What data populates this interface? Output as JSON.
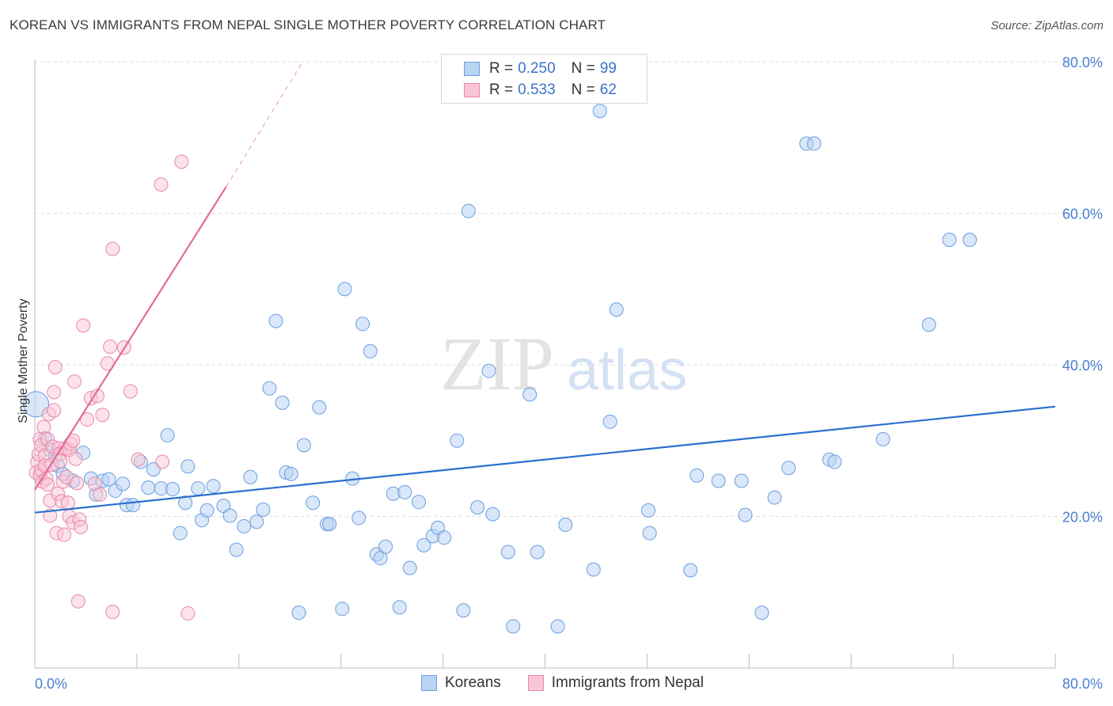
{
  "title": "KOREAN VS IMMIGRANTS FROM NEPAL SINGLE MOTHER POVERTY CORRELATION CHART",
  "source": "Source: ZipAtlas.com",
  "watermark": {
    "zip": "ZIP",
    "atlas": "atlas"
  },
  "legend": {
    "r_label": "R =",
    "n_label": "N =",
    "rows": [
      {
        "r": "0.250",
        "n": "99",
        "swatch_fill": "#b9d3f3",
        "swatch_stroke": "#6a9ee0"
      },
      {
        "r": "0.533",
        "n": "62",
        "swatch_fill": "#f9c6d6",
        "swatch_stroke": "#e888a8"
      }
    ]
  },
  "bottom_legend": [
    {
      "label": "Koreans",
      "fill": "#b9d3f3",
      "stroke": "#6a9ee0"
    },
    {
      "label": "Immigrants from Nepal",
      "fill": "#f9c6d6",
      "stroke": "#e888a8"
    }
  ],
  "chart_data": {
    "type": "scatter",
    "ylabel": "Single Mother Poverty",
    "xlim": [
      0,
      80
    ],
    "ylim": [
      0,
      80
    ],
    "x_tick_labels": {
      "left": "0.0%",
      "right": "80.0%"
    },
    "y_ticks": [
      {
        "value": 20,
        "label": "20.0%"
      },
      {
        "value": 40,
        "label": "40.0%"
      },
      {
        "value": 60,
        "label": "60.0%"
      },
      {
        "value": 80,
        "label": "80.0%"
      }
    ],
    "grid": "horizontal dashed",
    "series": [
      {
        "name": "Koreans",
        "color": "#6a9ee0",
        "fill": "#b9d3f3",
        "trend": {
          "x0": 0,
          "y0": 20.5,
          "x1": 80,
          "y1": 34.5,
          "color": "#2b6fd0"
        },
        "points": [
          [
            0.1,
            34.8
          ],
          [
            0.8,
            30.3
          ],
          [
            1.2,
            28.8
          ],
          [
            1.6,
            28.0
          ],
          [
            1.8,
            26.7
          ],
          [
            2.2,
            25.6
          ],
          [
            3.0,
            24.7
          ],
          [
            3.8,
            28.4
          ],
          [
            4.4,
            25.0
          ],
          [
            4.8,
            22.9
          ],
          [
            5.3,
            24.7
          ],
          [
            5.8,
            24.9
          ],
          [
            6.3,
            23.4
          ],
          [
            6.9,
            24.3
          ],
          [
            7.2,
            21.5
          ],
          [
            7.7,
            21.5
          ],
          [
            8.3,
            27.2
          ],
          [
            8.9,
            23.8
          ],
          [
            9.3,
            26.2
          ],
          [
            9.9,
            23.7
          ],
          [
            10.4,
            30.7
          ],
          [
            10.8,
            23.6
          ],
          [
            11.4,
            17.8
          ],
          [
            11.8,
            21.8
          ],
          [
            12.0,
            26.6
          ],
          [
            12.8,
            23.7
          ],
          [
            13.1,
            19.5
          ],
          [
            13.5,
            20.8
          ],
          [
            14.0,
            24.0
          ],
          [
            14.8,
            21.4
          ],
          [
            15.3,
            20.1
          ],
          [
            15.8,
            15.6
          ],
          [
            16.4,
            18.7
          ],
          [
            16.9,
            25.2
          ],
          [
            17.4,
            19.3
          ],
          [
            17.9,
            20.9
          ],
          [
            18.4,
            36.9
          ],
          [
            18.9,
            45.8
          ],
          [
            19.4,
            35.0
          ],
          [
            19.7,
            25.8
          ],
          [
            20.1,
            25.6
          ],
          [
            20.7,
            7.3
          ],
          [
            21.1,
            29.4
          ],
          [
            21.8,
            21.8
          ],
          [
            22.3,
            34.4
          ],
          [
            22.9,
            19.0
          ],
          [
            23.1,
            19.0
          ],
          [
            24.1,
            7.8
          ],
          [
            24.3,
            50.0
          ],
          [
            24.9,
            25.0
          ],
          [
            25.4,
            19.8
          ],
          [
            25.7,
            45.4
          ],
          [
            26.3,
            41.8
          ],
          [
            26.8,
            15.0
          ],
          [
            27.1,
            14.5
          ],
          [
            27.5,
            16.0
          ],
          [
            28.1,
            23.0
          ],
          [
            28.6,
            8.0
          ],
          [
            29.0,
            23.2
          ],
          [
            29.4,
            13.2
          ],
          [
            30.1,
            21.9
          ],
          [
            30.5,
            16.2
          ],
          [
            31.2,
            17.4
          ],
          [
            31.6,
            18.5
          ],
          [
            32.1,
            17.2
          ],
          [
            33.1,
            30.0
          ],
          [
            33.6,
            7.6
          ],
          [
            34.0,
            60.3
          ],
          [
            34.7,
            21.2
          ],
          [
            35.6,
            39.2
          ],
          [
            35.9,
            20.3
          ],
          [
            37.1,
            15.3
          ],
          [
            37.5,
            5.5
          ],
          [
            38.8,
            36.1
          ],
          [
            39.4,
            15.3
          ],
          [
            41.0,
            5.5
          ],
          [
            41.6,
            18.9
          ],
          [
            43.8,
            13.0
          ],
          [
            44.3,
            73.5
          ],
          [
            45.1,
            32.5
          ],
          [
            45.6,
            47.3
          ],
          [
            48.1,
            20.8
          ],
          [
            48.2,
            17.8
          ],
          [
            51.4,
            12.9
          ],
          [
            51.9,
            25.4
          ],
          [
            53.6,
            24.7
          ],
          [
            55.4,
            24.7
          ],
          [
            55.7,
            20.2
          ],
          [
            57.0,
            7.3
          ],
          [
            58.0,
            22.5
          ],
          [
            59.1,
            26.4
          ],
          [
            60.5,
            69.2
          ],
          [
            61.1,
            69.2
          ],
          [
            62.3,
            27.5
          ],
          [
            62.7,
            27.2
          ],
          [
            66.5,
            30.2
          ],
          [
            70.1,
            45.3
          ],
          [
            71.7,
            56.5
          ],
          [
            73.3,
            56.5
          ]
        ]
      },
      {
        "name": "Immigrants from Nepal",
        "color": "#e888a8",
        "fill": "#f9c6d6",
        "trend": {
          "x0": 0,
          "y0": 23.5,
          "x1": 15,
          "y1": 63.5,
          "dash_x1": 21,
          "dash_y1": 80,
          "color": "#e26c97"
        },
        "points": [
          [
            0.1,
            25.8
          ],
          [
            0.2,
            27.2
          ],
          [
            0.3,
            28.2
          ],
          [
            0.4,
            30.2
          ],
          [
            0.4,
            25.4
          ],
          [
            0.5,
            26.1
          ],
          [
            0.5,
            29.4
          ],
          [
            0.6,
            24.6
          ],
          [
            0.7,
            31.8
          ],
          [
            0.8,
            28.0
          ],
          [
            0.8,
            26.7
          ],
          [
            0.9,
            25.0
          ],
          [
            1.0,
            30.2
          ],
          [
            1.0,
            24.2
          ],
          [
            1.1,
            33.5
          ],
          [
            1.2,
            20.1
          ],
          [
            1.2,
            22.1
          ],
          [
            1.3,
            26.8
          ],
          [
            1.4,
            29.2
          ],
          [
            1.5,
            36.4
          ],
          [
            1.5,
            34.0
          ],
          [
            1.6,
            39.7
          ],
          [
            1.7,
            17.8
          ],
          [
            1.8,
            23.0
          ],
          [
            1.9,
            29.0
          ],
          [
            2.0,
            28.3
          ],
          [
            2.0,
            27.3
          ],
          [
            2.1,
            22.0
          ],
          [
            2.2,
            24.6
          ],
          [
            2.3,
            17.6
          ],
          [
            2.4,
            29.0
          ],
          [
            2.5,
            25.2
          ],
          [
            2.6,
            21.8
          ],
          [
            2.7,
            28.8
          ],
          [
            2.7,
            20.0
          ],
          [
            2.8,
            29.6
          ],
          [
            3.0,
            19.2
          ],
          [
            3.0,
            30.0
          ],
          [
            3.1,
            37.8
          ],
          [
            3.2,
            27.6
          ],
          [
            3.3,
            24.4
          ],
          [
            3.4,
            8.8
          ],
          [
            3.5,
            19.6
          ],
          [
            3.6,
            18.6
          ],
          [
            3.8,
            45.2
          ],
          [
            4.1,
            32.8
          ],
          [
            4.4,
            35.6
          ],
          [
            4.7,
            24.3
          ],
          [
            4.9,
            35.9
          ],
          [
            5.1,
            22.9
          ],
          [
            5.3,
            33.4
          ],
          [
            5.7,
            40.2
          ],
          [
            5.9,
            42.4
          ],
          [
            6.1,
            7.4
          ],
          [
            6.1,
            55.3
          ],
          [
            7.0,
            42.3
          ],
          [
            7.5,
            36.5
          ],
          [
            8.1,
            27.5
          ],
          [
            9.9,
            63.8
          ],
          [
            10.0,
            27.2
          ],
          [
            11.5,
            66.8
          ],
          [
            12.0,
            7.2
          ]
        ]
      }
    ]
  }
}
